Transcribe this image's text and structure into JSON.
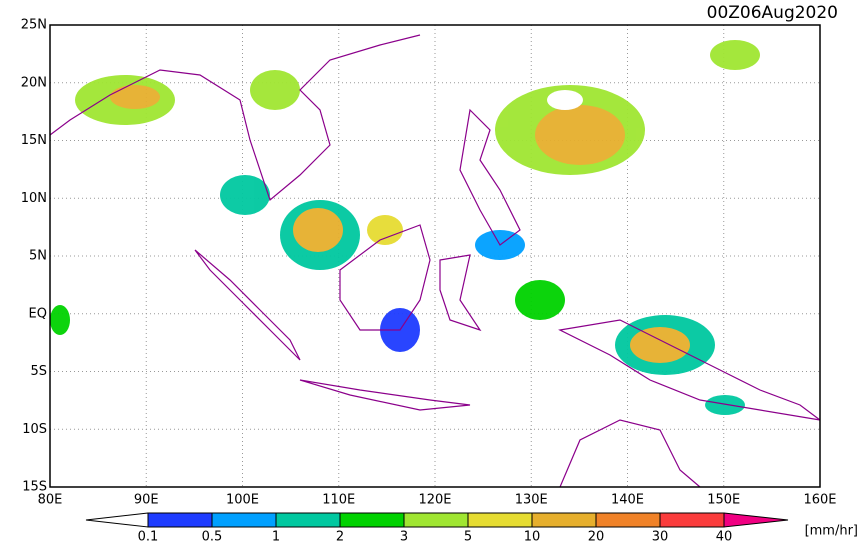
{
  "title": "00Z06Aug2020",
  "lat_labels": [
    "25N",
    "20N",
    "15N",
    "10N",
    "5N",
    "EQ",
    "5S",
    "10S",
    "15S"
  ],
  "lon_labels": [
    "80E",
    "90E",
    "100E",
    "110E",
    "120E",
    "130E",
    "140E",
    "150E",
    "160E"
  ],
  "colorbar": {
    "levels": [
      0.1,
      0.5,
      1,
      2,
      3,
      5,
      10,
      20,
      30,
      40
    ],
    "colors": [
      "#1e3cff",
      "#00a0ff",
      "#00c8a0",
      "#00d200",
      "#a0e632",
      "#e6dc32",
      "#e6af2d",
      "#f08228",
      "#fa3c3c",
      "#f00082"
    ],
    "unit": "[mm/hr]"
  }
}
